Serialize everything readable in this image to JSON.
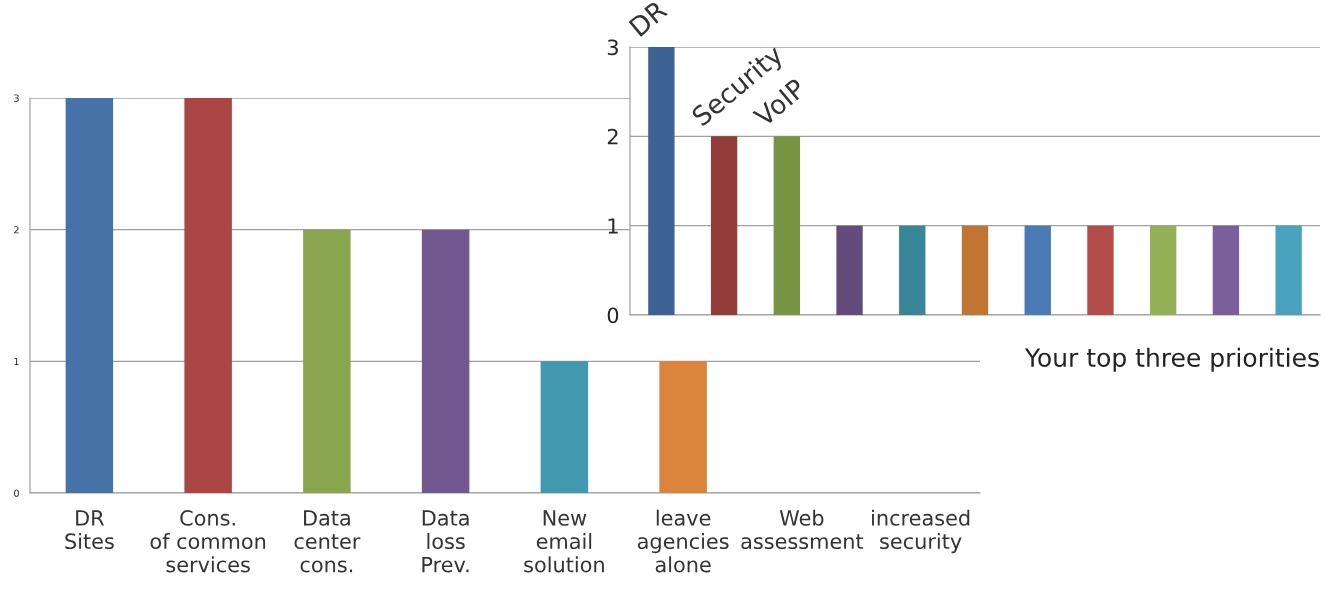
{
  "chart_data": [
    {
      "type": "bar",
      "categories": [
        "DR\nSites",
        "Cons.\nof common\nservices",
        "Data\ncenter\ncons.",
        "Data\nloss\nPrev.",
        "New\nemail\nsolution",
        "leave\nagencies\nalone",
        "Web\nassessment",
        "increased\nsecurity"
      ],
      "values": [
        3,
        3,
        2,
        2,
        1,
        1,
        0,
        0
      ],
      "colors": [
        "#4572a7",
        "#aa4643",
        "#89a54e",
        "#71588f",
        "#4198af",
        "#db843d",
        null,
        null
      ],
      "ylim": [
        0,
        3
      ],
      "yticks": [
        0,
        1,
        2,
        3
      ],
      "grid": "y"
    },
    {
      "type": "bar",
      "categories": [
        null,
        null,
        null,
        null,
        null,
        null,
        null,
        null,
        null,
        null,
        null
      ],
      "values": [
        3,
        2,
        2,
        1,
        1,
        1,
        1,
        1,
        1,
        1,
        1
      ],
      "colors": [
        "#3c6394",
        "#943c3a",
        "#779443",
        "#634c7c",
        "#398699",
        "#c07533",
        "#4a7ab4",
        "#b44c4a",
        "#93b258",
        "#7a5f9a",
        "#4aa3bc"
      ],
      "ylim": [
        0,
        3
      ],
      "yticks": [
        0,
        1,
        2,
        3
      ],
      "grid": "y",
      "xlabel": "Your top three priorities",
      "annotations": [
        "DR",
        "Security",
        "VoIP"
      ]
    }
  ]
}
